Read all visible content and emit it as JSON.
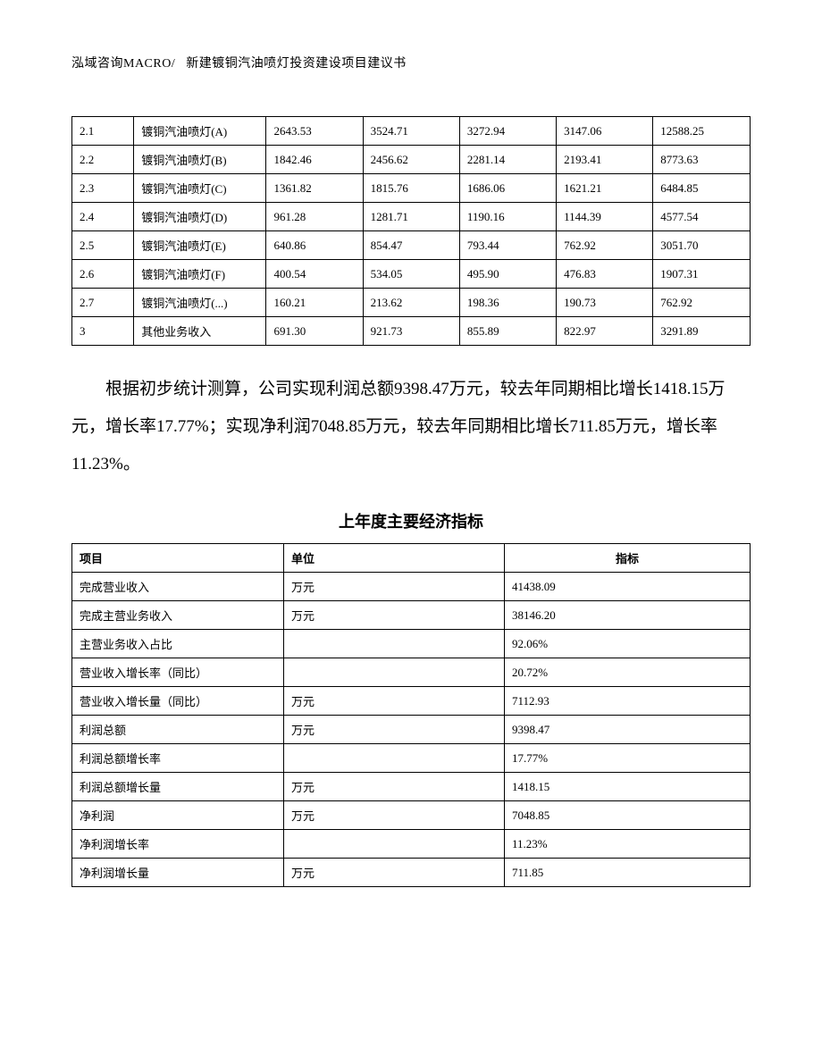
{
  "header": {
    "left": "泓域咨询MACRO/",
    "right": "新建镀铜汽油喷灯投资建设项目建议书"
  },
  "table1": {
    "rows": [
      [
        "2.1",
        "镀铜汽油喷灯(A)",
        "2643.53",
        "3524.71",
        "3272.94",
        "3147.06",
        "12588.25"
      ],
      [
        "2.2",
        "镀铜汽油喷灯(B)",
        "1842.46",
        "2456.62",
        "2281.14",
        "2193.41",
        "8773.63"
      ],
      [
        "2.3",
        "镀铜汽油喷灯(C)",
        "1361.82",
        "1815.76",
        "1686.06",
        "1621.21",
        "6484.85"
      ],
      [
        "2.4",
        "镀铜汽油喷灯(D)",
        "961.28",
        "1281.71",
        "1190.16",
        "1144.39",
        "4577.54"
      ],
      [
        "2.5",
        "镀铜汽油喷灯(E)",
        "640.86",
        "854.47",
        "793.44",
        "762.92",
        "3051.70"
      ],
      [
        "2.6",
        "镀铜汽油喷灯(F)",
        "400.54",
        "534.05",
        "495.90",
        "476.83",
        "1907.31"
      ],
      [
        "2.7",
        "镀铜汽油喷灯(...)",
        "160.21",
        "213.62",
        "198.36",
        "190.73",
        "762.92"
      ],
      [
        "3",
        "其他业务收入",
        "691.30",
        "921.73",
        "855.89",
        "822.97",
        "3291.89"
      ]
    ]
  },
  "paragraph": "根据初步统计测算，公司实现利润总额9398.47万元，较去年同期相比增长1418.15万元，增长率17.77%；实现净利润7048.85万元，较去年同期相比增长711.85万元，增长率11.23%。",
  "table2": {
    "title": "上年度主要经济指标",
    "headers": [
      "项目",
      "单位",
      "指标"
    ],
    "rows": [
      [
        "完成营业收入",
        "万元",
        "41438.09"
      ],
      [
        "完成主营业务收入",
        "万元",
        "38146.20"
      ],
      [
        "主营业务收入占比",
        "",
        "92.06%"
      ],
      [
        "营业收入增长率（同比）",
        "",
        "20.72%"
      ],
      [
        "营业收入增长量（同比）",
        "万元",
        "7112.93"
      ],
      [
        "利润总额",
        "万元",
        "9398.47"
      ],
      [
        "利润总额增长率",
        "",
        "17.77%"
      ],
      [
        "利润总额增长量",
        "万元",
        "1418.15"
      ],
      [
        "净利润",
        "万元",
        "7048.85"
      ],
      [
        "净利润增长率",
        "",
        "11.23%"
      ],
      [
        "净利润增长量",
        "万元",
        "711.85"
      ]
    ]
  }
}
